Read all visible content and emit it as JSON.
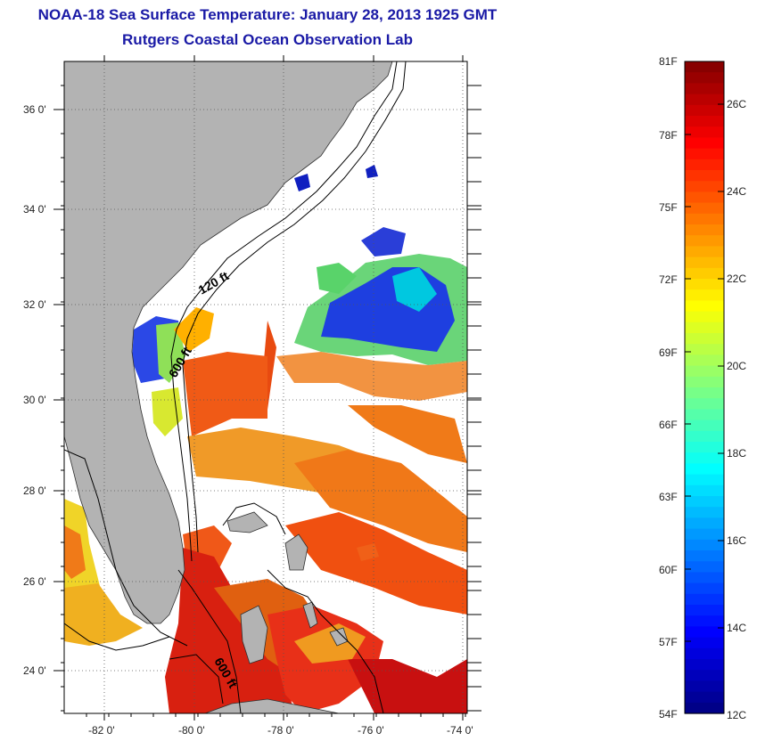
{
  "header": {
    "title": "NOAA-18 Sea Surface Temperature:  January 28, 2013 1925 GMT",
    "subtitle": "Rutgers Coastal Ocean Observation Lab"
  },
  "map": {
    "lat_labels": [
      "36 0'",
      "34 0'",
      "32 0'",
      "30 0'",
      "28 0'",
      "26 0'",
      "24 0'"
    ],
    "lon_labels": [
      "-82 0'",
      "-80 0'",
      "-78 0'",
      "-76 0'",
      "-74 0'"
    ],
    "isobath_labels": [
      "120 ft",
      "600 ft",
      "600 ft"
    ],
    "colors": {
      "land": "#b3b3b3",
      "ocean_nodata": "#ffffff",
      "isobath": "#000000"
    }
  },
  "colorbar": {
    "fahrenheit_labels": [
      "81F",
      "78F",
      "75F",
      "72F",
      "69F",
      "66F",
      "63F",
      "60F",
      "57F",
      "54F"
    ],
    "celsius_labels": [
      "26C",
      "24C",
      "22C",
      "20C",
      "18C",
      "16C",
      "14C",
      "12C"
    ],
    "colormap": "jet",
    "range_c": [
      12,
      27.2
    ]
  }
}
